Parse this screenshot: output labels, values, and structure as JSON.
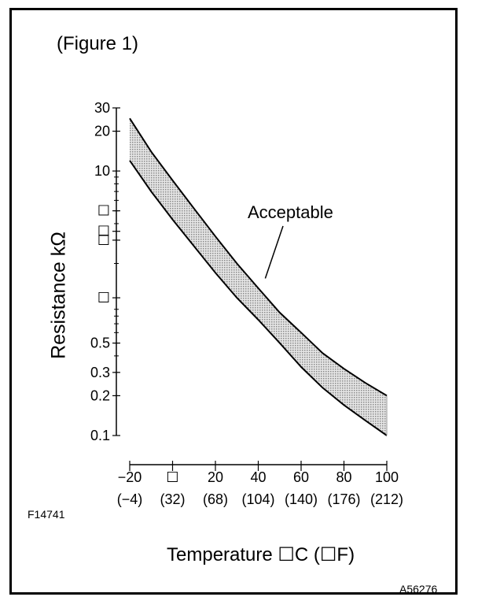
{
  "figure_label": "(Figure 1)",
  "figure_code_left": "F14741",
  "figure_code_right": "A56276",
  "colors": {
    "band_fill": "#c8c8c8",
    "line": "#000000",
    "background": "#ffffff"
  },
  "chart_data": {
    "type": "area",
    "title": "",
    "xlabel": "Temperature ☐C (☐F)",
    "ylabel": "Resistance kΩ",
    "xlim": [
      -20,
      100
    ],
    "ylim": [
      0.1,
      30
    ],
    "y_scale": "log",
    "x_tick_labels": [
      {
        "x": -20,
        "c": "−20",
        "f": "(−4)"
      },
      {
        "x": 0,
        "c": "☐",
        "f": "(32)"
      },
      {
        "x": 20,
        "c": "20",
        "f": "(68)"
      },
      {
        "x": 40,
        "c": "40",
        "f": "(104)"
      },
      {
        "x": 60,
        "c": "60",
        "f": "(140)"
      },
      {
        "x": 80,
        "c": "80",
        "f": "(176)"
      },
      {
        "x": 100,
        "c": "100",
        "f": "(212)"
      }
    ],
    "y_tick_labels": [
      {
        "y": 30,
        "label": "30"
      },
      {
        "y": 20,
        "label": "20"
      },
      {
        "y": 10,
        "label": "10"
      },
      {
        "y": 5,
        "label": "☐"
      },
      {
        "y": 3.5,
        "label": "☐"
      },
      {
        "y": 3,
        "label": "☐"
      },
      {
        "y": 1.1,
        "label": "☐"
      },
      {
        "y": 0.5,
        "label": "0.5"
      },
      {
        "y": 0.3,
        "label": "0.3"
      },
      {
        "y": 0.2,
        "label": "0.2"
      },
      {
        "y": 0.1,
        "label": "0.1"
      }
    ],
    "series": [
      {
        "x": [
          -20,
          -10,
          0,
          10,
          20,
          30,
          40,
          50,
          60,
          70,
          80,
          90,
          100
        ],
        "upper": [
          25,
          14,
          8.5,
          5.2,
          3.2,
          2.0,
          1.3,
          0.85,
          0.6,
          0.42,
          0.32,
          0.25,
          0.2
        ],
        "lower": [
          12,
          7.0,
          4.3,
          2.7,
          1.7,
          1.1,
          0.75,
          0.5,
          0.33,
          0.23,
          0.17,
          0.13,
          0.1
        ]
      }
    ],
    "annotations": [
      {
        "text": "Acceptable",
        "x": 44,
        "y": 1.5
      }
    ],
    "grid": false,
    "legend": "none"
  }
}
